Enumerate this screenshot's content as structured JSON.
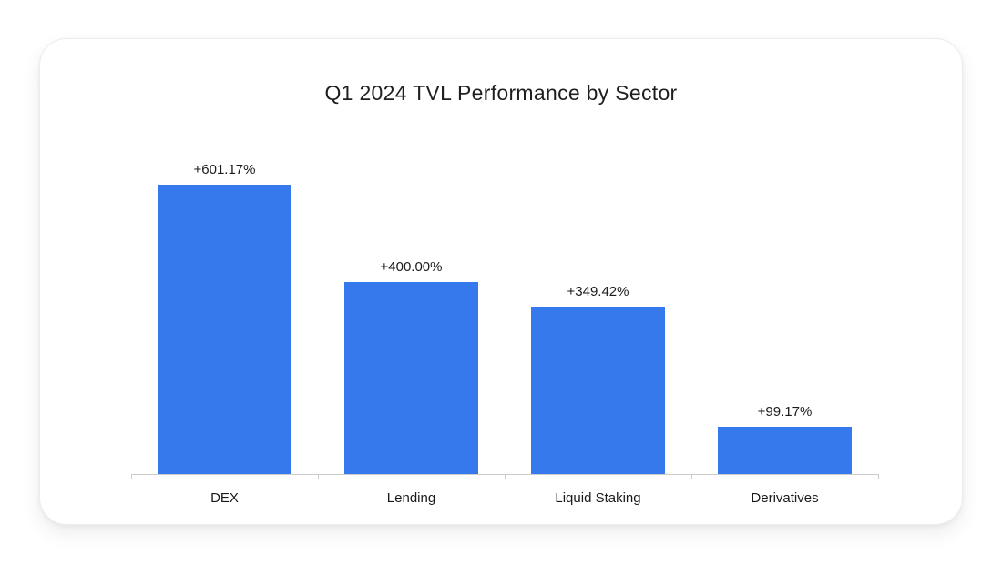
{
  "card": {
    "background": "#ffffff",
    "border_color": "#ececec"
  },
  "chart_data": {
    "type": "bar",
    "title": "Q1 2024 TVL Performance by Sector",
    "categories": [
      "DEX",
      "Lending",
      "Liquid Staking",
      "Derivatives"
    ],
    "values": [
      601.17,
      400.0,
      349.42,
      99.17
    ],
    "value_labels": [
      "+601.17%",
      "+400.00%",
      "+349.42%",
      "+99.17%"
    ],
    "xlabel": "",
    "ylabel": "",
    "ylim": [
      0,
      650
    ],
    "grid": false,
    "legend_position": "none",
    "bar_color": "#3579ec",
    "axis_color": "#cccccc",
    "title_color": "#1f1f1f",
    "label_color": "#1a1a1a"
  }
}
